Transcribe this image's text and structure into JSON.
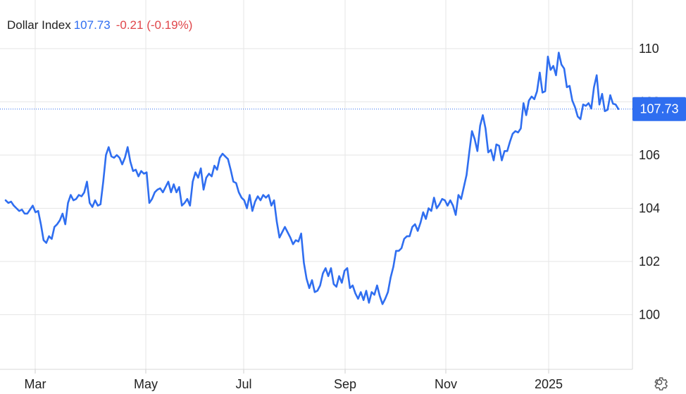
{
  "header": {
    "instrument": "Dollar Index",
    "price": "107.73",
    "change": "-0.21 (-0.19%)"
  },
  "price_tag": "107.73",
  "colors": {
    "line": "#2f6ef0",
    "change_negative": "#e0464a",
    "grid": "#e6e6e6",
    "tag_bg": "#2f6ef0"
  },
  "icons": {
    "settings": "gear-icon"
  },
  "chart_data": {
    "type": "line",
    "title": "Dollar Index",
    "xlabel": "",
    "ylabel": "",
    "x_ticks": [
      "Mar",
      "May",
      "Jul",
      "Sep",
      "Nov",
      "2025"
    ],
    "y_ticks": [
      "110",
      "108",
      "106",
      "104",
      "102",
      "100"
    ],
    "ylim": [
      98,
      111.5
    ],
    "last_value": 107.73,
    "grid": true,
    "series": [
      {
        "values": [
          104.3,
          104.2,
          104.25,
          104.1,
          104.0,
          103.9,
          103.95,
          103.8,
          103.8,
          103.95,
          104.1,
          103.85,
          103.9,
          103.4,
          102.8,
          102.7,
          102.95,
          102.85,
          103.3,
          103.4,
          103.55,
          103.8,
          103.4,
          104.2,
          104.5,
          104.3,
          104.35,
          104.5,
          104.45,
          104.6,
          105.0,
          104.2,
          104.05,
          104.3,
          104.1,
          104.15,
          105.0,
          106.0,
          106.3,
          105.95,
          105.9,
          106.0,
          105.9,
          105.65,
          105.9,
          106.3,
          105.75,
          105.4,
          105.45,
          105.2,
          105.4,
          105.3,
          105.35,
          104.2,
          104.35,
          104.6,
          104.7,
          104.75,
          104.6,
          104.8,
          105.0,
          104.6,
          104.9,
          104.6,
          104.8,
          104.1,
          104.2,
          104.35,
          104.1,
          105.0,
          105.35,
          105.15,
          105.5,
          104.7,
          105.15,
          105.3,
          105.2,
          105.6,
          105.45,
          105.9,
          106.05,
          105.95,
          105.85,
          105.45,
          105.0,
          104.95,
          104.6,
          104.4,
          104.3,
          104.0,
          104.5,
          103.9,
          104.25,
          104.45,
          104.3,
          104.5,
          104.4,
          104.5,
          104.1,
          104.3,
          103.5,
          102.9,
          103.1,
          103.3,
          103.1,
          102.9,
          102.65,
          102.8,
          102.75,
          103.05,
          101.95,
          101.35,
          101.0,
          101.3,
          100.85,
          100.9,
          101.1,
          101.55,
          101.75,
          101.45,
          101.75,
          101.15,
          101.05,
          101.45,
          101.2,
          101.65,
          101.75,
          101.0,
          101.1,
          100.8,
          100.6,
          100.85,
          100.55,
          100.9,
          100.45,
          100.85,
          100.75,
          101.1,
          100.7,
          100.4,
          100.6,
          100.85,
          101.4,
          101.8,
          102.4,
          102.4,
          102.5,
          102.85,
          102.95,
          102.95,
          103.3,
          103.4,
          103.15,
          103.45,
          103.85,
          103.6,
          104.0,
          103.9,
          104.4,
          104.0,
          104.15,
          104.35,
          104.3,
          104.1,
          104.3,
          104.1,
          103.75,
          104.5,
          104.35,
          104.8,
          105.25,
          106.1,
          106.9,
          106.6,
          106.15,
          107.1,
          107.5,
          107.0,
          106.1,
          106.2,
          105.8,
          106.4,
          106.35,
          105.8,
          106.15,
          106.15,
          106.5,
          106.8,
          106.9,
          106.85,
          107.0,
          107.95,
          107.5,
          108.05,
          108.2,
          108.1,
          108.4,
          109.1,
          108.35,
          108.4,
          109.7,
          109.2,
          109.35,
          109.0,
          109.85,
          109.4,
          109.25,
          108.55,
          108.6,
          108.05,
          107.8,
          107.45,
          107.35,
          107.9,
          107.85,
          107.95,
          107.75,
          108.55,
          109.0,
          107.9,
          108.3,
          107.65,
          107.7,
          108.25,
          107.93,
          107.9,
          107.73
        ]
      }
    ]
  }
}
